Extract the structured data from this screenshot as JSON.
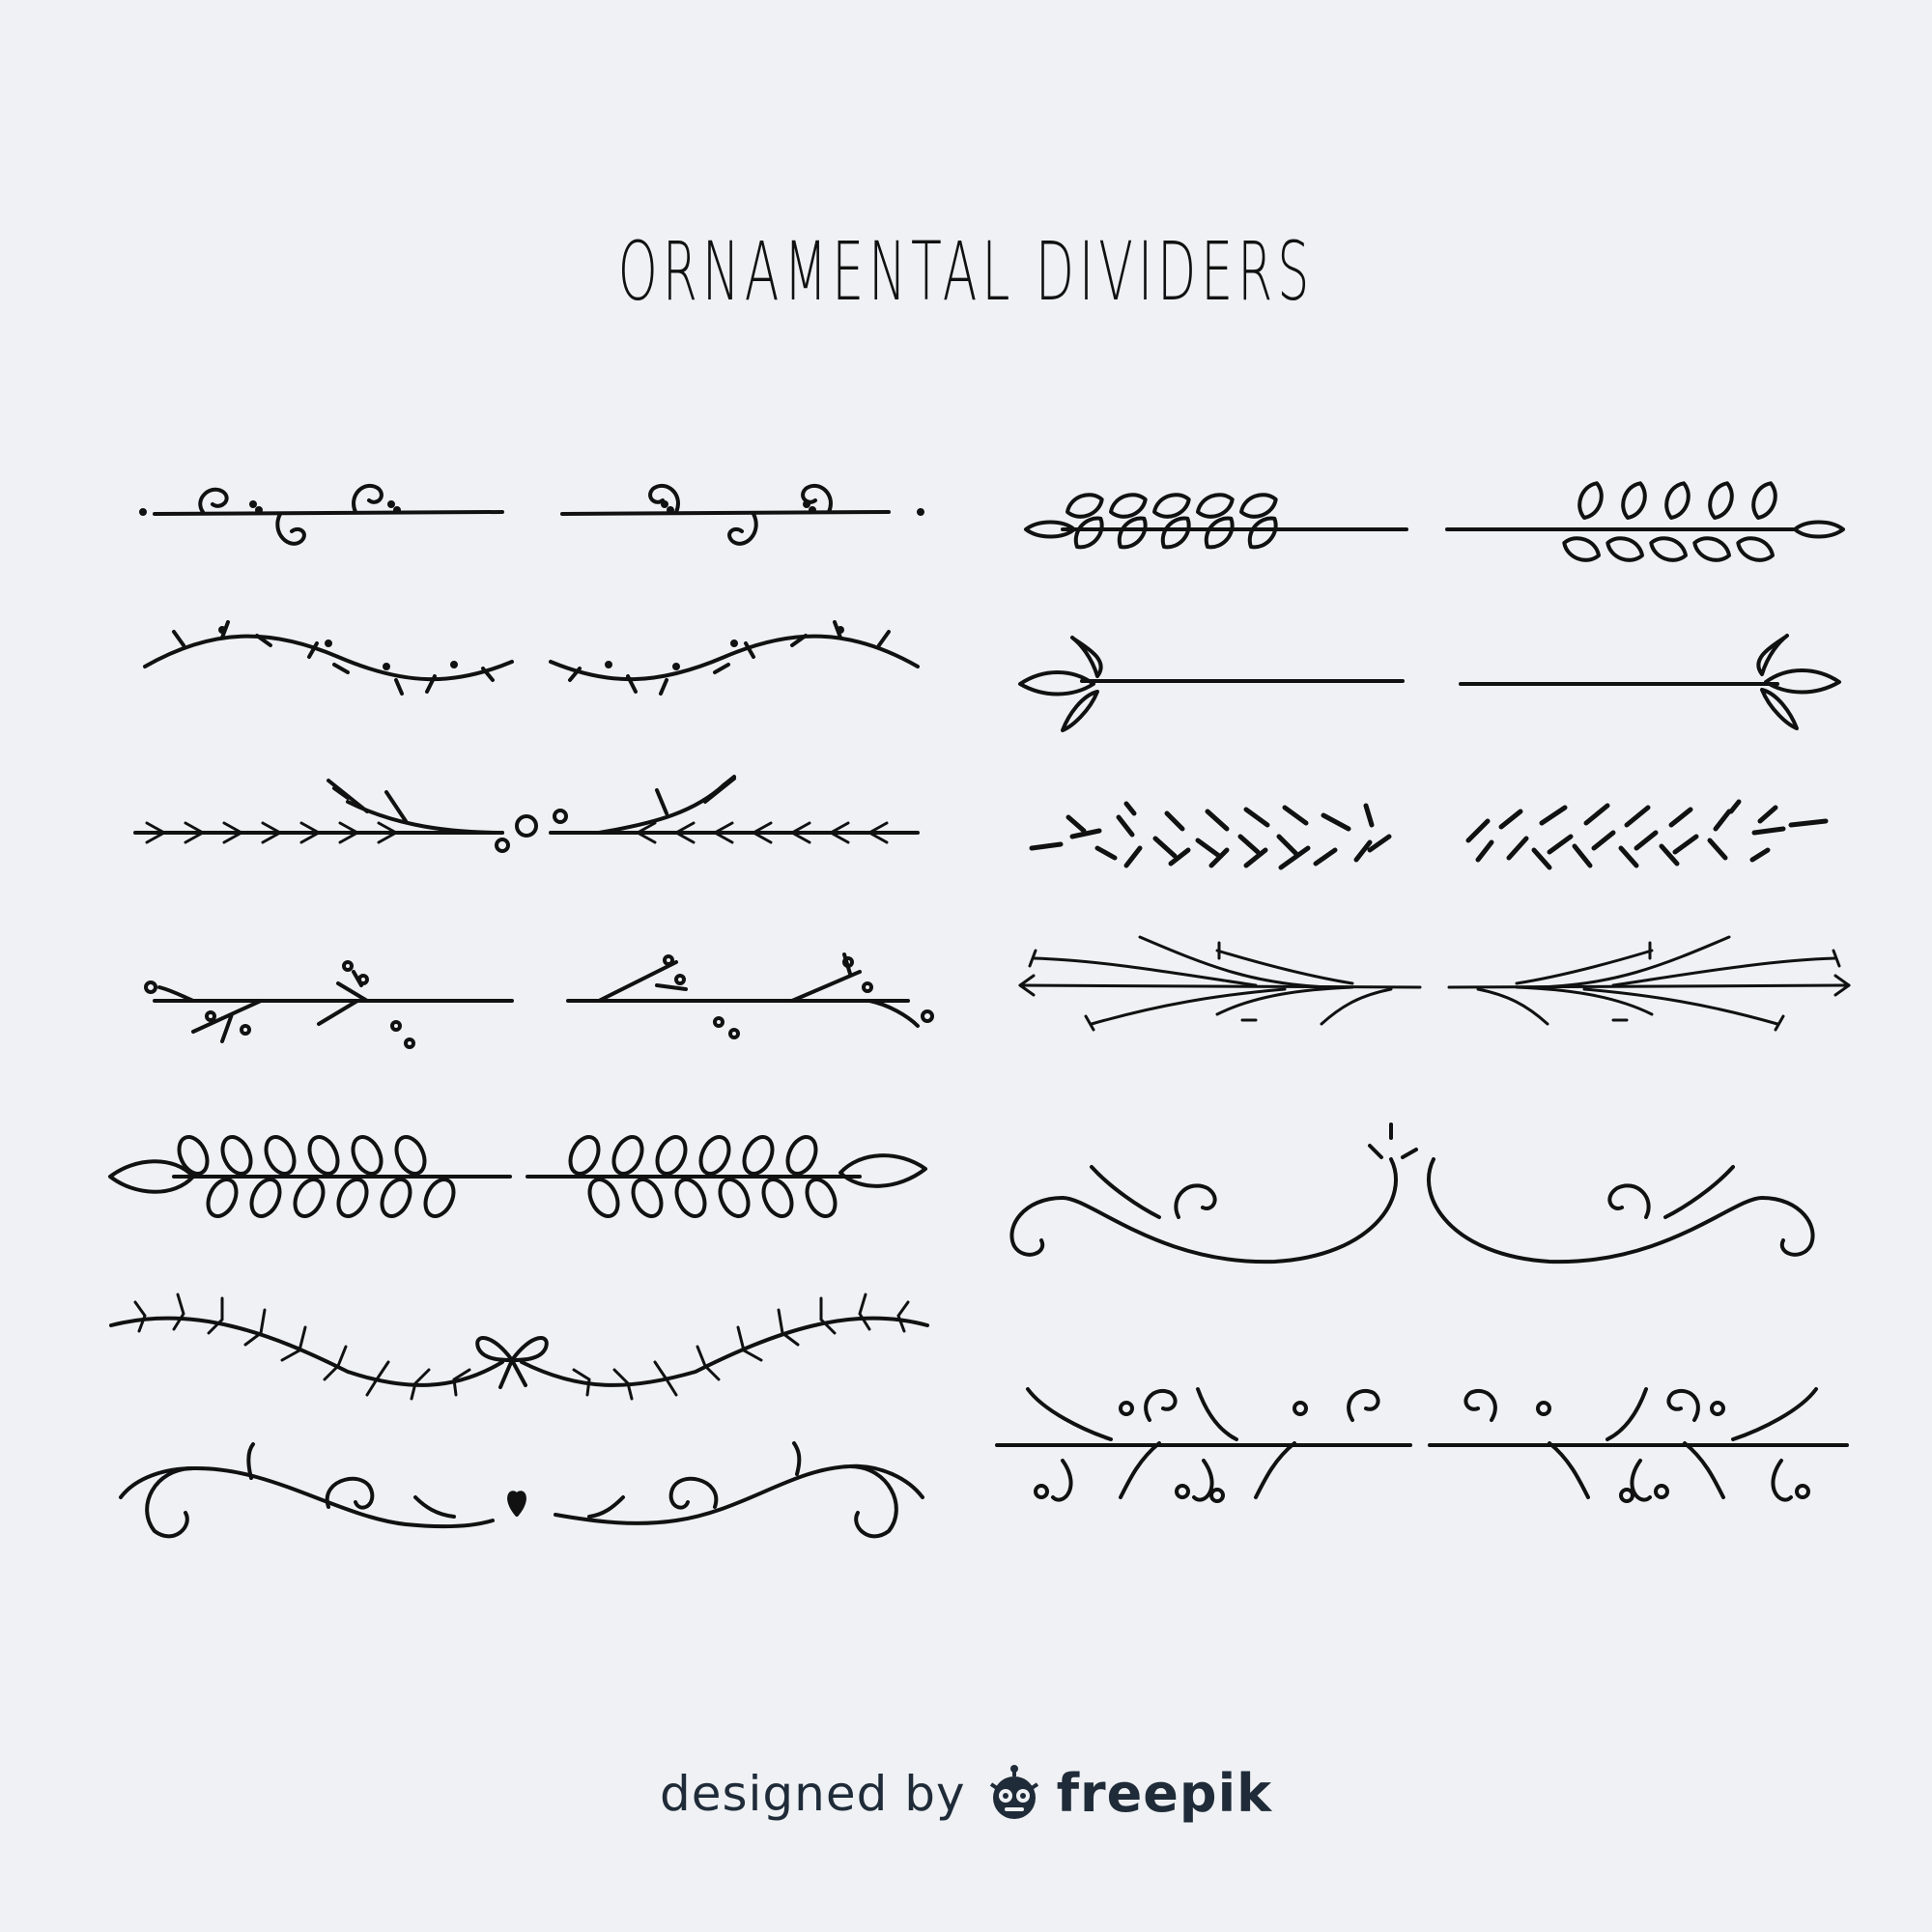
{
  "title": "ORNAMENTAL DIVIDERS",
  "credit": {
    "prefix": "designed by",
    "brand": "freepik",
    "logo_icon": "freepik-robot-logo-icon"
  },
  "colors": {
    "background": "#eff1f4",
    "ink": "#111111",
    "credit": "#1f2b38"
  }
}
